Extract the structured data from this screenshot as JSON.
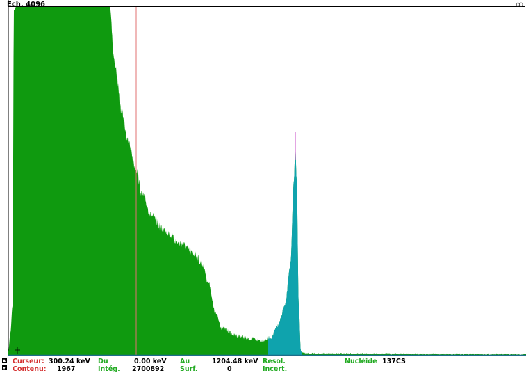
{
  "scale_label": "Ech. 4096",
  "top_right_icon": "infinity-icon",
  "top_right_glyph": "∞",
  "colors": {
    "spectrum": "#0f9a0f",
    "roi": "#0fa3ad",
    "cursor_line": "#e07070",
    "peak_marker": "#d06ad0",
    "baseline": "#1d6d8a",
    "label_red": "#d43030",
    "label_green": "#22aa22"
  },
  "status": {
    "curseur_label": "Curseur:",
    "curseur_value": "300.24 keV",
    "du_label": "Du",
    "du_value": "0.00 keV",
    "au_label": "Au",
    "au_value": "1204.48 keV",
    "resol_label": "Resol.",
    "nucleide_label": "Nucléide",
    "nucleide_value": "137CS",
    "contenu_label": "Contenu:",
    "contenu_value": "1967",
    "integ_label": "Intég.",
    "integ_value": "2700892",
    "surf_label": "Surf.",
    "surf_value": "0",
    "incert_label": "Incert."
  }
}
